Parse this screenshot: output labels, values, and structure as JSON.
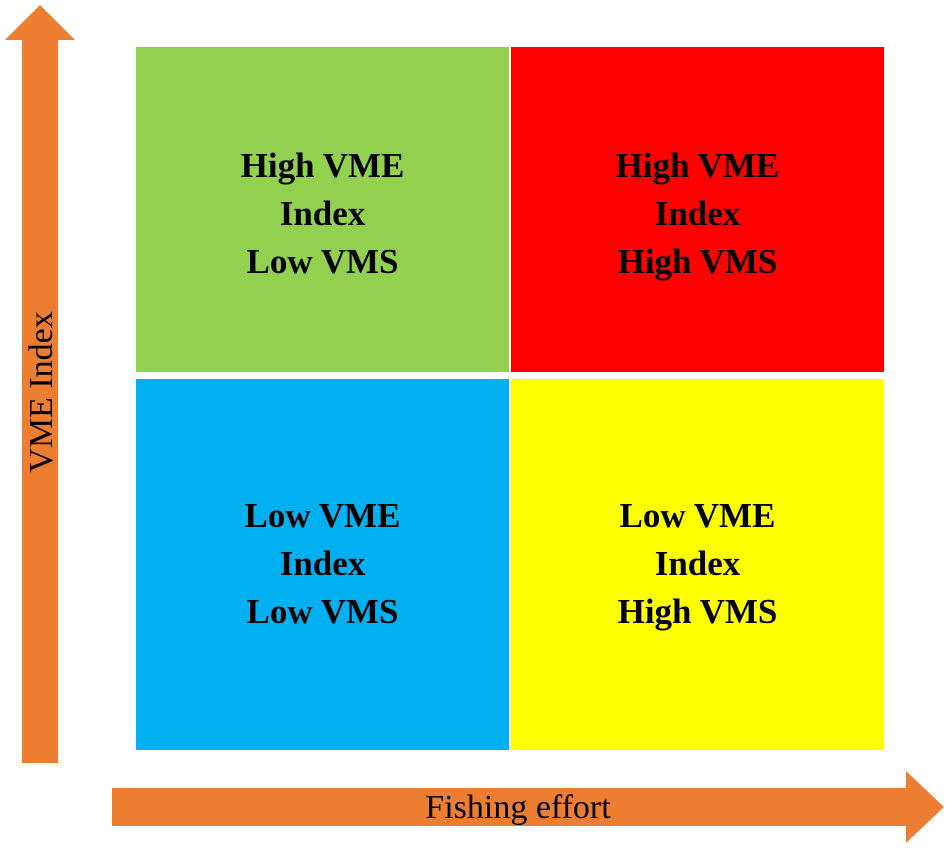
{
  "axes": {
    "x_label": "Fishing effort",
    "y_label": "VME Index",
    "arrow_color": "#ED7D31"
  },
  "quadrants": {
    "top_left": {
      "lines": [
        "High VME",
        "Index",
        "Low VMS"
      ],
      "color": "#92D050"
    },
    "top_right": {
      "lines": [
        "High VME",
        "Index",
        "High VMS"
      ],
      "color": "#FF0000"
    },
    "bottom_left": {
      "lines": [
        "Low VME",
        "Index",
        "Low VMS"
      ],
      "color": "#00B0F0"
    },
    "bottom_right": {
      "lines": [
        "Low VME",
        "Index",
        "High VMS"
      ],
      "color": "#FFFF00"
    }
  }
}
